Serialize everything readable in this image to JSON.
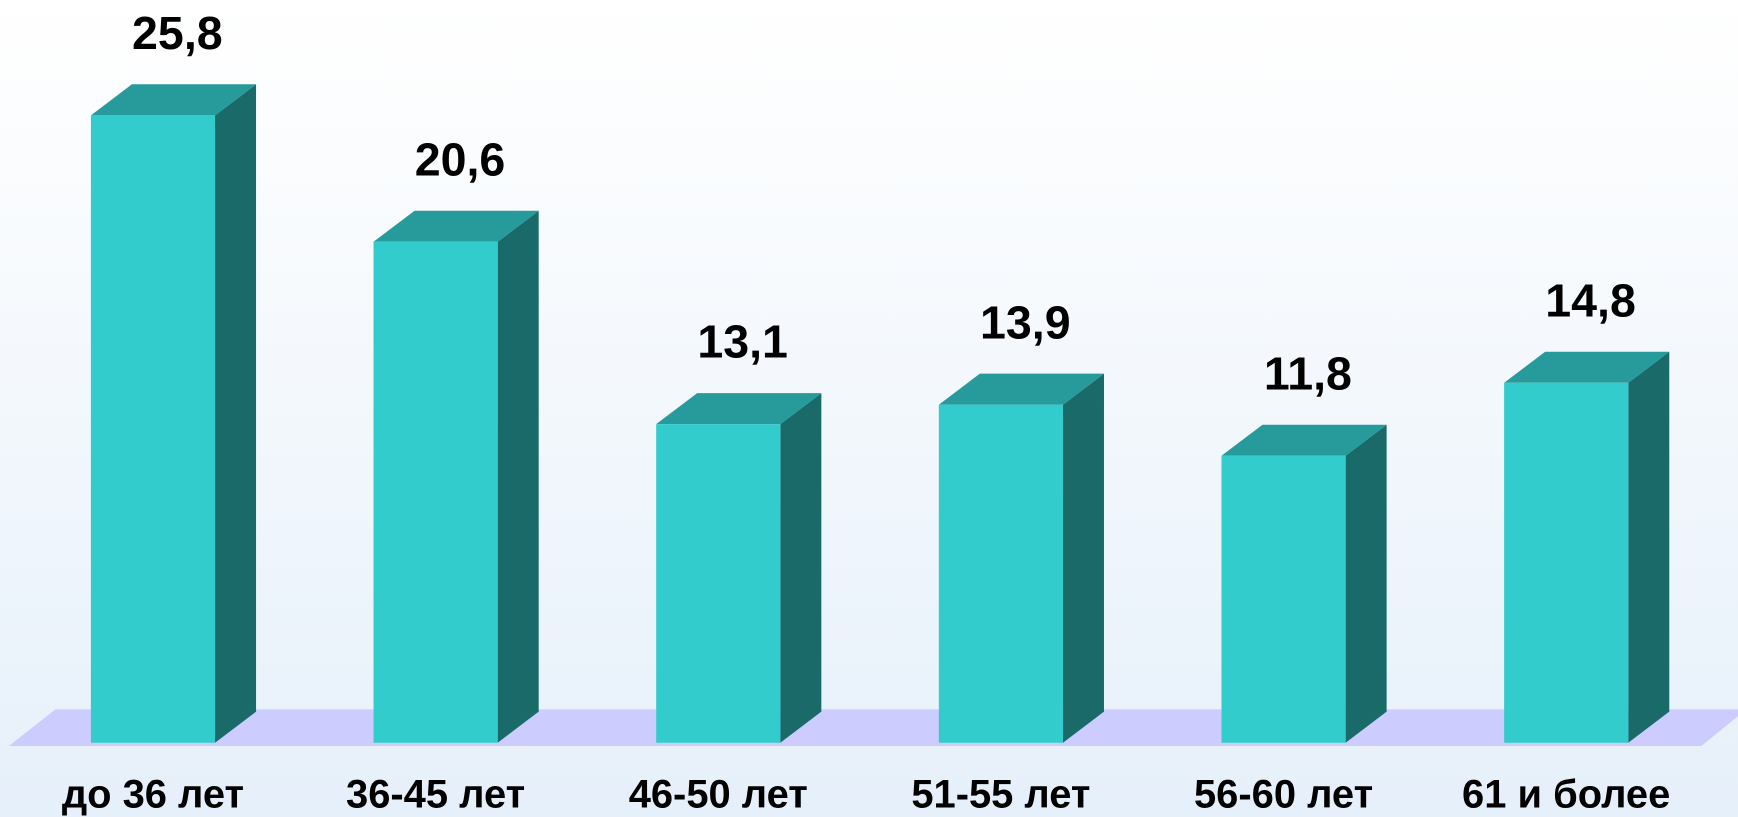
{
  "chart_data": {
    "type": "bar3d",
    "categories": [
      "до 36 лет",
      "36-45 лет",
      "46-50 лет",
      "51-55 лет",
      "56-60 лет",
      "61 и более"
    ],
    "values": [
      25.8,
      20.6,
      13.1,
      13.9,
      11.8,
      14.8
    ],
    "value_labels": [
      "25,8",
      "20,6",
      "13,1",
      "13,9",
      "11,8",
      "14,8"
    ],
    "color": "#33cccc"
  }
}
